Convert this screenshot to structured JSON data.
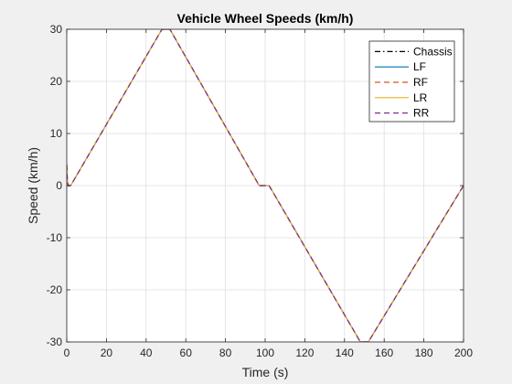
{
  "chart_data": {
    "type": "line",
    "title": "Vehicle Wheel Speeds (km/h)",
    "xlabel": "Time (s)",
    "ylabel": "Speed (km/h)",
    "xlim": [
      0,
      200
    ],
    "ylim": [
      -30,
      30
    ],
    "xticks": [
      0,
      20,
      40,
      60,
      80,
      100,
      120,
      140,
      160,
      180,
      200
    ],
    "yticks": [
      -30,
      -20,
      -10,
      0,
      10,
      20,
      30
    ],
    "grid": true,
    "legend_position": "top-right",
    "series": [
      {
        "name": "Chassis",
        "color": "#000000",
        "style": "dashdot",
        "x": [
          0,
          2,
          48,
          52,
          97,
          102,
          148,
          152,
          200
        ],
        "y": [
          0,
          0,
          30,
          30,
          0,
          0,
          -30,
          -30,
          0
        ]
      },
      {
        "name": "LF",
        "color": "#0072BD",
        "style": "solid",
        "x": [
          0,
          0.3,
          0.8,
          2,
          48,
          52,
          97,
          102,
          148,
          152,
          200
        ],
        "y": [
          4,
          1,
          0,
          0,
          30,
          30,
          0,
          0,
          -30,
          -30,
          0
        ]
      },
      {
        "name": "RF",
        "color": "#D95319",
        "style": "dashed",
        "x": [
          0,
          0.3,
          0.8,
          2,
          48,
          52,
          97,
          102,
          148,
          152,
          200
        ],
        "y": [
          4,
          1,
          0,
          0,
          30,
          30,
          0,
          0,
          -30,
          -30,
          0
        ]
      },
      {
        "name": "LR",
        "color": "#EDB120",
        "style": "solid",
        "x": [
          0,
          0.3,
          0.8,
          2,
          48,
          52,
          97,
          102,
          148,
          152,
          200
        ],
        "y": [
          4,
          1,
          0,
          0,
          30,
          30,
          0,
          0,
          -30,
          -30,
          0
        ]
      },
      {
        "name": "RR",
        "color": "#7E2F8E",
        "style": "dashed",
        "x": [
          0,
          0.3,
          0.8,
          2,
          48,
          52,
          97,
          102,
          148,
          152,
          200
        ],
        "y": [
          4,
          1,
          0,
          0,
          30,
          30,
          0,
          0,
          -30,
          -30,
          0
        ]
      }
    ]
  }
}
